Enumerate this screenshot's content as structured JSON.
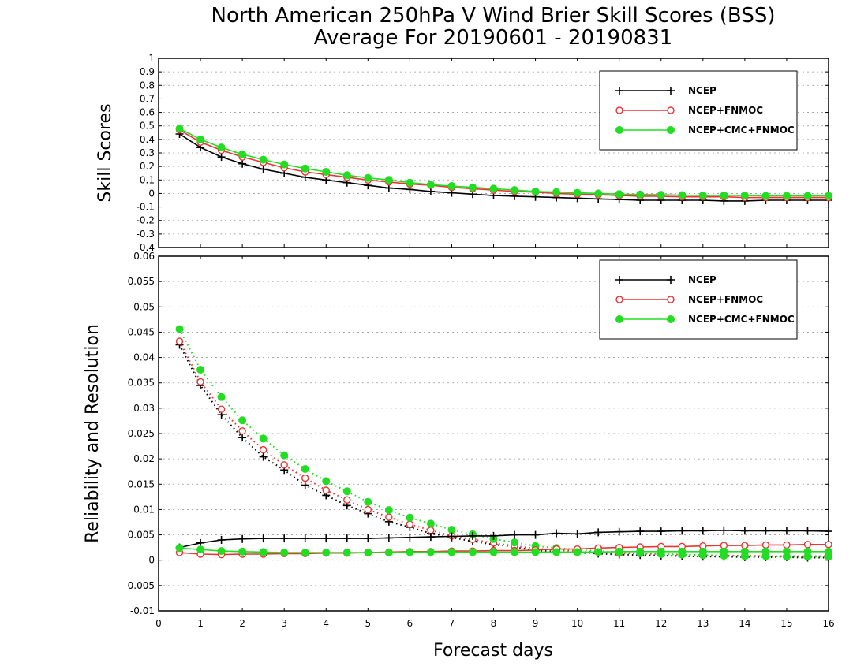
{
  "title": [
    "North American 250hPa V Wind Brier Skill Scores (BSS)",
    "Average For 20190601 - 20190831"
  ],
  "colors": {
    "NCEP": "#000000",
    "NCEP+FNMOC": "#ee3333",
    "NCEP+CMC+FNMOC": "#22dd22",
    "grid": "#999999"
  },
  "legend": [
    {
      "name": "NCEP",
      "marker": "plus"
    },
    {
      "name": "NCEP+FNMOC",
      "marker": "open-circle"
    },
    {
      "name": "NCEP+CMC+FNMOC",
      "marker": "filled-circle"
    }
  ],
  "xlabel": "Forecast days",
  "chart_data": [
    {
      "type": "line",
      "panel": "top",
      "ylabel": "Skill Scores",
      "xlim": [
        0,
        16
      ],
      "xticks": [
        0,
        1,
        2,
        3,
        4,
        5,
        6,
        7,
        8,
        9,
        10,
        11,
        12,
        13,
        14,
        15,
        16
      ],
      "ylim": [
        -0.4,
        1
      ],
      "yticks": [
        -0.4,
        -0.3,
        -0.2,
        -0.1,
        0,
        0.1,
        0.2,
        0.3,
        0.4,
        0.5,
        0.6,
        0.7,
        0.8,
        0.9,
        1
      ],
      "grid": true,
      "legend_position": "top-right",
      "x": [
        0.5,
        1,
        1.5,
        2,
        2.5,
        3,
        3.5,
        4,
        4.5,
        5,
        5.5,
        6,
        6.5,
        7,
        7.5,
        8,
        8.5,
        9,
        9.5,
        10,
        10.5,
        11,
        11.5,
        12,
        12.5,
        13,
        13.5,
        14,
        14.5,
        15,
        15.5,
        16
      ],
      "series": [
        {
          "name": "NCEP",
          "marker": "plus",
          "style": "solid",
          "values": [
            0.44,
            0.34,
            0.27,
            0.22,
            0.18,
            0.15,
            0.12,
            0.1,
            0.08,
            0.06,
            0.04,
            0.03,
            0.015,
            0.005,
            -0.005,
            -0.015,
            -0.02,
            -0.025,
            -0.03,
            -0.035,
            -0.04,
            -0.045,
            -0.05,
            -0.05,
            -0.05,
            -0.05,
            -0.055,
            -0.055,
            -0.05,
            -0.05,
            -0.05,
            -0.05
          ]
        },
        {
          "name": "NCEP+FNMOC",
          "marker": "open-circle",
          "style": "solid",
          "values": [
            0.47,
            0.38,
            0.32,
            0.27,
            0.23,
            0.19,
            0.16,
            0.14,
            0.12,
            0.1,
            0.085,
            0.07,
            0.06,
            0.045,
            0.035,
            0.025,
            0.015,
            0.01,
            0.0,
            -0.005,
            -0.01,
            -0.015,
            -0.02,
            -0.02,
            -0.025,
            -0.025,
            -0.025,
            -0.03,
            -0.03,
            -0.03,
            -0.03,
            -0.03
          ]
        },
        {
          "name": "NCEP+CMC+FNMOC",
          "marker": "filled-circle",
          "style": "solid",
          "values": [
            0.48,
            0.4,
            0.34,
            0.29,
            0.25,
            0.215,
            0.185,
            0.16,
            0.135,
            0.115,
            0.1,
            0.08,
            0.065,
            0.055,
            0.045,
            0.035,
            0.025,
            0.015,
            0.01,
            0.005,
            0.0,
            -0.005,
            -0.008,
            -0.01,
            -0.012,
            -0.015,
            -0.015,
            -0.015,
            -0.018,
            -0.018,
            -0.018,
            -0.018
          ]
        }
      ]
    },
    {
      "type": "line",
      "panel": "bottom",
      "ylabel": "Reliability and Resolution",
      "xlim": [
        0,
        16
      ],
      "xticks": [
        0,
        1,
        2,
        3,
        4,
        5,
        6,
        7,
        8,
        9,
        10,
        11,
        12,
        13,
        14,
        15,
        16
      ],
      "ylim": [
        -0.01,
        0.06
      ],
      "yticks": [
        -0.01,
        -0.005,
        0,
        0.005,
        0.01,
        0.015,
        0.02,
        0.025,
        0.03,
        0.035,
        0.04,
        0.045,
        0.05,
        0.055,
        0.06
      ],
      "grid": true,
      "legend_position": "top-right",
      "x": [
        0.5,
        1,
        1.5,
        2,
        2.5,
        3,
        3.5,
        4,
        4.5,
        5,
        5.5,
        6,
        6.5,
        7,
        7.5,
        8,
        8.5,
        9,
        9.5,
        10,
        10.5,
        11,
        11.5,
        12,
        12.5,
        13,
        13.5,
        14,
        14.5,
        15,
        15.5,
        16
      ],
      "series": [
        {
          "name": "NCEP",
          "metric": "Resolution",
          "marker": "plus",
          "style": "dotted",
          "values": [
            0.0425,
            0.0345,
            0.0287,
            0.0242,
            0.0204,
            0.0178,
            0.0148,
            0.0128,
            0.0108,
            0.0092,
            0.0076,
            0.0065,
            0.0053,
            0.0045,
            0.0037,
            0.0031,
            0.0026,
            0.0019,
            0.0017,
            0.0015,
            0.0013,
            0.0011,
            0.001,
            0.0009,
            0.0008,
            0.0007,
            0.0007,
            0.0006,
            0.0006,
            0.0006,
            0.0005,
            0.0005
          ]
        },
        {
          "name": "NCEP+FNMOC",
          "metric": "Resolution",
          "marker": "open-circle",
          "style": "dotted",
          "values": [
            0.0432,
            0.0352,
            0.0298,
            0.0255,
            0.0218,
            0.0188,
            0.0162,
            0.0138,
            0.0119,
            0.01,
            0.0085,
            0.0071,
            0.0059,
            0.0048,
            0.0041,
            0.0034,
            0.0028,
            0.0023,
            0.002,
            0.0018,
            0.0016,
            0.0014,
            0.0013,
            0.0012,
            0.0011,
            0.001,
            0.0009,
            0.0009,
            0.0008,
            0.0008,
            0.0008,
            0.0008
          ]
        },
        {
          "name": "NCEP+CMC+FNMOC",
          "metric": "Resolution",
          "marker": "filled-circle",
          "style": "dotted",
          "values": [
            0.0456,
            0.0376,
            0.0322,
            0.0276,
            0.024,
            0.0207,
            0.018,
            0.0156,
            0.0136,
            0.0115,
            0.0099,
            0.0084,
            0.0072,
            0.006,
            0.0051,
            0.0042,
            0.0035,
            0.0028,
            0.0024,
            0.0021,
            0.0018,
            0.0016,
            0.0014,
            0.0012,
            0.0011,
            0.001,
            0.0009,
            0.0008,
            0.0008,
            0.0007,
            0.0007,
            0.0007
          ]
        },
        {
          "name": "NCEP",
          "metric": "Reliability",
          "marker": "plus",
          "style": "solid",
          "values": [
            0.0025,
            0.0034,
            0.004,
            0.0042,
            0.0043,
            0.0043,
            0.0043,
            0.0043,
            0.0043,
            0.0043,
            0.0044,
            0.0045,
            0.0046,
            0.0047,
            0.0048,
            0.0048,
            0.005,
            0.005,
            0.0053,
            0.0052,
            0.0055,
            0.0056,
            0.0057,
            0.0057,
            0.0058,
            0.0058,
            0.0059,
            0.0058,
            0.0058,
            0.0058,
            0.0058,
            0.0057
          ]
        },
        {
          "name": "NCEP+FNMOC",
          "metric": "Reliability",
          "marker": "open-circle",
          "style": "solid",
          "values": [
            0.0015,
            0.0012,
            0.0011,
            0.0012,
            0.0012,
            0.0013,
            0.0013,
            0.0014,
            0.0014,
            0.0015,
            0.0016,
            0.0017,
            0.0017,
            0.0018,
            0.0018,
            0.0019,
            0.0019,
            0.002,
            0.0022,
            0.0022,
            0.0024,
            0.0025,
            0.0026,
            0.0027,
            0.0027,
            0.0028,
            0.0029,
            0.0029,
            0.003,
            0.003,
            0.0031,
            0.0031
          ]
        },
        {
          "name": "NCEP+CMC+FNMOC",
          "metric": "Reliability",
          "marker": "filled-circle",
          "style": "solid",
          "values": [
            0.0024,
            0.0021,
            0.0018,
            0.0017,
            0.0016,
            0.0015,
            0.0015,
            0.0015,
            0.0015,
            0.0015,
            0.0015,
            0.0016,
            0.0016,
            0.0016,
            0.0016,
            0.0016,
            0.0016,
            0.0016,
            0.0016,
            0.0016,
            0.0016,
            0.0017,
            0.0017,
            0.0017,
            0.0017,
            0.0017,
            0.0017,
            0.0017,
            0.0017,
            0.0017,
            0.0017,
            0.0017
          ]
        }
      ]
    }
  ]
}
